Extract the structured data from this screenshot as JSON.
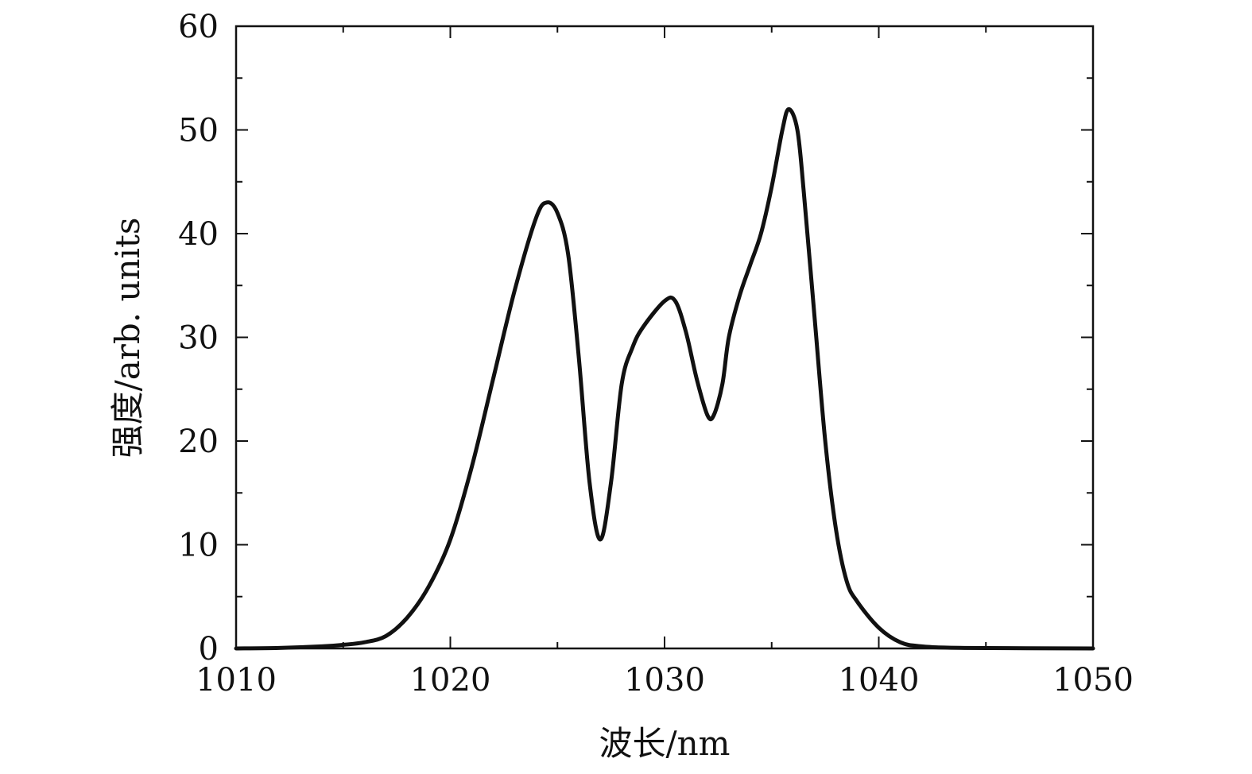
{
  "chart_data": {
    "type": "line",
    "xlabel": "波长/nm",
    "ylabel": "强度/arb. units",
    "xlim": [
      1010,
      1050
    ],
    "ylim": [
      0,
      60
    ],
    "x_ticks": [
      1010,
      1020,
      1030,
      1040,
      1050
    ],
    "y_ticks": [
      0,
      10,
      20,
      30,
      40,
      50,
      60
    ],
    "x_minor_step": 5,
    "y_minor_step": 5,
    "grid": false,
    "legend": "none",
    "line_color": "#111111",
    "series": [
      {
        "x": [
          1010,
          1012,
          1014,
          1015,
          1016,
          1017,
          1018,
          1019,
          1020,
          1021,
          1022,
          1023,
          1024,
          1024.5,
          1025,
          1025.5,
          1026,
          1026.5,
          1027,
          1027.5,
          1028,
          1028.5,
          1029,
          1030,
          1030.5,
          1031,
          1031.5,
          1032,
          1032.3,
          1032.7,
          1033,
          1033.5,
          1034,
          1034.5,
          1035,
          1035.5,
          1035.8,
          1036.2,
          1036.5,
          1037,
          1037.5,
          1038,
          1038.5,
          1039,
          1040,
          1041,
          1042,
          1044,
          1050
        ],
        "y": [
          0,
          0.05,
          0.2,
          0.35,
          0.6,
          1.2,
          3,
          6,
          10.5,
          17.5,
          26,
          34.5,
          41.5,
          43,
          42,
          38,
          28,
          16,
          10.5,
          16,
          25.5,
          29,
          31,
          33.5,
          33.5,
          30.5,
          26,
          22.5,
          22.5,
          25.5,
          30,
          34,
          37,
          40,
          44.5,
          50,
          52,
          50,
          44,
          32,
          20,
          11.5,
          6.5,
          4.5,
          2,
          0.6,
          0.2,
          0.05,
          0
        ]
      }
    ]
  }
}
